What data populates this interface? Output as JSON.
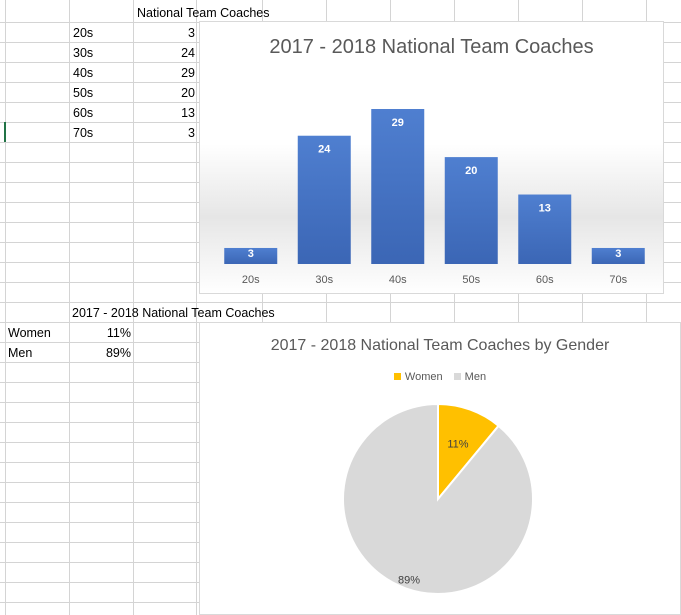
{
  "sheet": {
    "age_table": {
      "header": "National Team Coaches",
      "rows": [
        {
          "label": "20s",
          "value": "3"
        },
        {
          "label": "30s",
          "value": "24"
        },
        {
          "label": "40s",
          "value": "29"
        },
        {
          "label": "50s",
          "value": "20"
        },
        {
          "label": "60s",
          "value": "13"
        },
        {
          "label": "70s",
          "value": "3"
        }
      ]
    },
    "gender_table": {
      "header": "2017 - 2018 National Team Coaches",
      "rows": [
        {
          "label": "Women",
          "value": "11%"
        },
        {
          "label": "Men",
          "value": "89%"
        }
      ]
    }
  },
  "chart_data": [
    {
      "type": "bar",
      "title": "2017 - 2018 National Team Coaches",
      "categories": [
        "20s",
        "30s",
        "40s",
        "50s",
        "60s",
        "70s"
      ],
      "values": [
        3,
        24,
        29,
        20,
        13,
        3
      ],
      "data_labels": [
        "3",
        "24",
        "29",
        "20",
        "13",
        "3"
      ],
      "xlabel": "",
      "ylabel": "",
      "ylim": [
        0,
        32
      ],
      "grid": false,
      "bar_color": "#4472c4"
    },
    {
      "type": "pie",
      "title": "2017 - 2018 National Team Coaches by Gender",
      "labels": [
        "Women",
        "Men"
      ],
      "values": [
        11,
        89
      ],
      "data_labels": [
        "11%",
        "89%"
      ],
      "colors": [
        "#ffc000",
        "#d9d9d9"
      ],
      "legend": "top"
    }
  ]
}
